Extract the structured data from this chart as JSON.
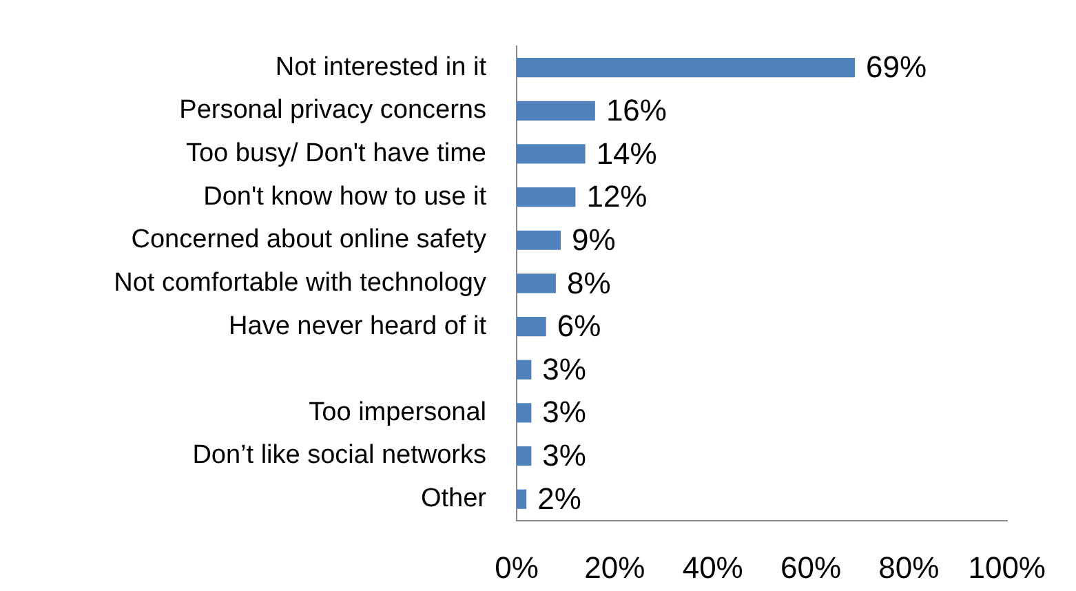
{
  "chart_data": {
    "type": "bar",
    "orientation": "horizontal",
    "categories": [
      "Not interested in it",
      "Personal privacy concerns",
      "Too busy/ Don't have time",
      "Don't know how to use it",
      "Concerned about online safety",
      "Not comfortable with technology",
      "Have never heard of it",
      null,
      "Too impersonal",
      "Don’t like social networks",
      "Other"
    ],
    "values": [
      69,
      16,
      14,
      12,
      9,
      8,
      6,
      3,
      3,
      3,
      2
    ],
    "value_labels": [
      "69%",
      "16%",
      "14%",
      "12%",
      "9%",
      "8%",
      "6%",
      "3%",
      "3%",
      "3%",
      "2%"
    ],
    "color": "#4f81bd",
    "xlim": [
      0,
      100
    ],
    "xticks": [
      {
        "value": 0,
        "label": "0%"
      },
      {
        "value": 20,
        "label": "20%"
      },
      {
        "value": 40,
        "label": "40%"
      },
      {
        "value": 60,
        "label": "60%"
      },
      {
        "value": 80,
        "label": "80%"
      },
      {
        "value": 100,
        "label": "100%"
      }
    ],
    "grid": false,
    "legend": false
  }
}
